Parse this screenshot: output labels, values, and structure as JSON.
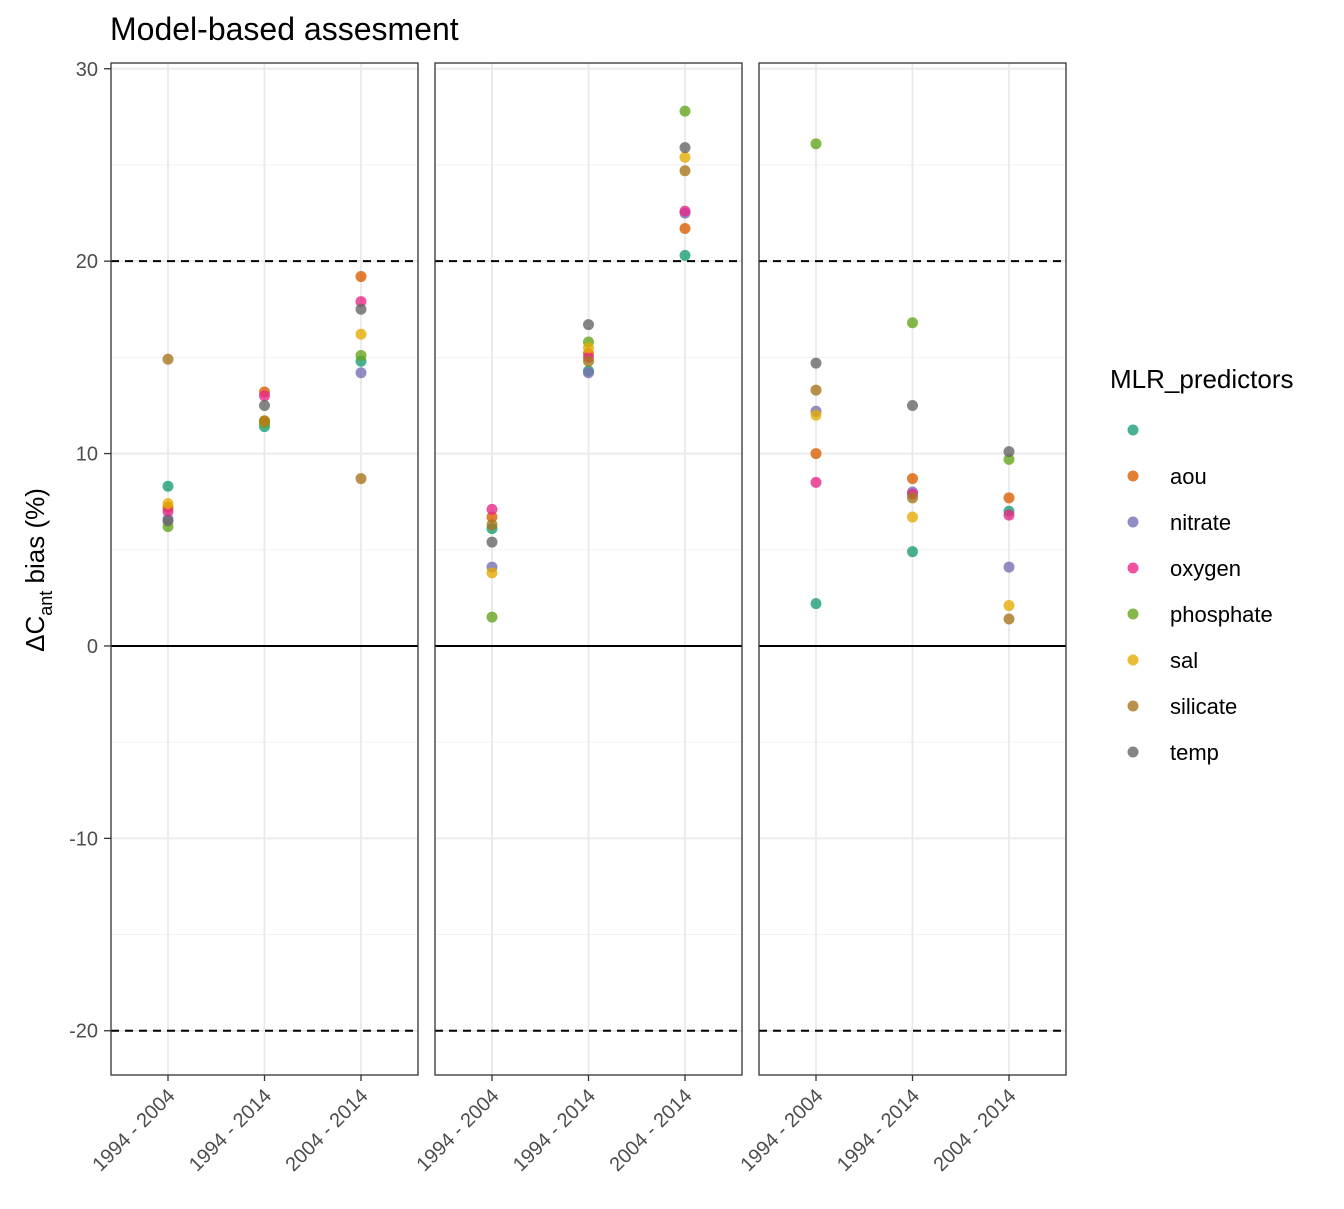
{
  "chart_data": {
    "type": "scatter",
    "title": "Model-based assesment",
    "ylabel_prefix": "ΔC",
    "ylabel_sub": "ant",
    "ylabel_suffix": " bias (%)",
    "ylim": [
      -22.3,
      30.3
    ],
    "yticks": [
      -20,
      -10,
      0,
      10,
      20,
      30
    ],
    "categories": [
      "1994 - 2004",
      "1994 - 2014",
      "2004 - 2014"
    ],
    "hlines": {
      "solid": [
        0
      ],
      "dashed": [
        20,
        -20
      ]
    },
    "grid": true,
    "legend": {
      "title": "MLR_predictors",
      "position": "right",
      "items": [
        {
          "key": "none",
          "label": "",
          "color": "#1B9E77"
        },
        {
          "key": "aou",
          "label": "aou",
          "color": "#D95F02"
        },
        {
          "key": "nitrate",
          "label": "nitrate",
          "color": "#7570B3"
        },
        {
          "key": "oxygen",
          "label": "oxygen",
          "color": "#E7298A"
        },
        {
          "key": "phosphate",
          "label": "phosphate",
          "color": "#66A61E"
        },
        {
          "key": "sal",
          "label": "sal",
          "color": "#E6AB02"
        },
        {
          "key": "silicate",
          "label": "silicate",
          "color": "#A6761D"
        },
        {
          "key": "temp",
          "label": "temp",
          "color": "#666666"
        }
      ]
    },
    "panels": [
      {
        "series": {
          "none": [
            8.3,
            11.4,
            14.8
          ],
          "aou": [
            7.2,
            13.2,
            19.2
          ],
          "nitrate": [
            6.6,
            11.6,
            14.2
          ],
          "oxygen": [
            7.0,
            13.0,
            17.9
          ],
          "phosphate": [
            6.2,
            11.6,
            15.1
          ],
          "sal": [
            7.4,
            11.7,
            16.2
          ],
          "silicate": [
            14.9,
            11.7,
            8.7
          ],
          "temp": [
            6.5,
            12.5,
            17.5
          ]
        }
      },
      {
        "series": {
          "none": [
            6.1,
            14.3,
            20.3
          ],
          "aou": [
            6.7,
            15.2,
            21.7
          ],
          "nitrate": [
            4.1,
            14.2,
            22.5
          ],
          "oxygen": [
            7.1,
            15.0,
            22.6
          ],
          "phosphate": [
            1.5,
            15.8,
            27.8
          ],
          "sal": [
            3.8,
            15.5,
            25.4
          ],
          "silicate": [
            6.3,
            14.8,
            24.7
          ],
          "temp": [
            5.4,
            16.7,
            25.9
          ]
        }
      },
      {
        "series": {
          "none": [
            2.2,
            4.9,
            7.0
          ],
          "aou": [
            10.0,
            8.7,
            7.7
          ],
          "nitrate": [
            12.2,
            8.0,
            4.1
          ],
          "oxygen": [
            8.5,
            7.9,
            6.8
          ],
          "phosphate": [
            26.1,
            16.8,
            9.7
          ],
          "sal": [
            12.0,
            6.7,
            2.1
          ],
          "silicate": [
            13.3,
            7.7,
            1.4
          ],
          "temp": [
            14.7,
            12.5,
            10.1
          ]
        }
      }
    ]
  }
}
